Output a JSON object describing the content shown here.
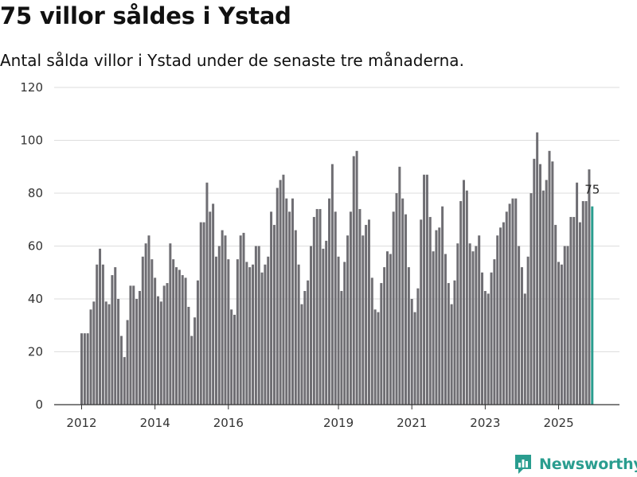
{
  "title": "75 villor såldes i Ystad",
  "subtitle": "Antal sålda villor i Ystad under de senaste tre månaderna.",
  "brand": "Newsworthy",
  "colors": {
    "bar": "#6f6e73",
    "highlight": "#2a9d8f",
    "grid": "#dddddd",
    "axis": "#333333"
  },
  "chart_data": {
    "type": "bar",
    "title": "75 villor såldes i Ystad",
    "xlabel": "",
    "ylabel": "",
    "ylim": [
      0,
      120
    ],
    "yticks": [
      0,
      20,
      40,
      60,
      80,
      100,
      120
    ],
    "xticks": [
      {
        "label": "2012",
        "index": 0
      },
      {
        "label": "2014",
        "index": 24
      },
      {
        "label": "2016",
        "index": 48
      },
      {
        "label": "2019",
        "index": 84
      },
      {
        "label": "2021",
        "index": 108
      },
      {
        "label": "2023",
        "index": 132
      },
      {
        "label": "2025",
        "index": 156
      }
    ],
    "highlight_label": "75",
    "values": [
      27,
      27,
      27,
      36,
      39,
      53,
      59,
      53,
      39,
      38,
      49,
      52,
      40,
      26,
      18,
      32,
      45,
      45,
      40,
      43,
      56,
      61,
      64,
      55,
      48,
      41,
      39,
      45,
      46,
      61,
      55,
      52,
      51,
      49,
      48,
      37,
      26,
      33,
      47,
      69,
      69,
      84,
      73,
      76,
      56,
      60,
      66,
      64,
      55,
      36,
      34,
      55,
      64,
      65,
      54,
      52,
      53,
      60,
      60,
      50,
      53,
      56,
      73,
      68,
      82,
      85,
      87,
      78,
      73,
      78,
      66,
      53,
      38,
      43,
      47,
      60,
      71,
      74,
      74,
      59,
      62,
      78,
      91,
      73,
      56,
      43,
      54,
      64,
      73,
      94,
      96,
      74,
      64,
      68,
      70,
      48,
      36,
      35,
      46,
      52,
      58,
      57,
      73,
      80,
      90,
      78,
      72,
      52,
      40,
      35,
      44,
      70,
      87,
      87,
      71,
      58,
      66,
      67,
      75,
      57,
      46,
      38,
      47,
      61,
      77,
      85,
      81,
      61,
      58,
      60,
      64,
      50,
      43,
      42,
      50,
      55,
      64,
      67,
      69,
      73,
      76,
      78,
      78,
      60,
      52,
      42,
      56,
      80,
      93,
      103,
      91,
      81,
      85,
      96,
      92,
      68,
      54,
      53,
      60,
      60,
      71,
      71,
      84,
      69,
      77,
      77,
      89,
      75
    ]
  }
}
